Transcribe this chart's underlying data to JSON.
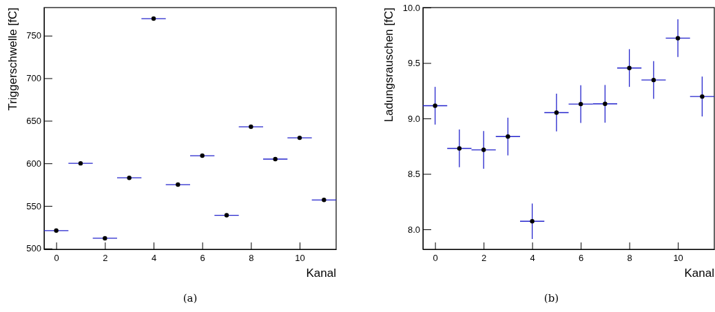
{
  "chart_data": [
    {
      "type": "scatter",
      "xlabel": "Kanal",
      "ylabel": "Triggerschwelle [fC]",
      "annotations": [
        "(a)"
      ],
      "x": [
        0,
        1,
        2,
        3,
        4,
        5,
        6,
        7,
        8,
        9,
        10,
        11
      ],
      "xlim": [
        -0.5,
        11.5
      ],
      "xticks": [
        0,
        2,
        4,
        6,
        8,
        10
      ],
      "ylim": [
        499,
        783
      ],
      "yticks": [
        500,
        550,
        600,
        650,
        700,
        750
      ],
      "marker": "circle",
      "series": [
        {
          "color": "#000000",
          "values": [
            521,
            600,
            512,
            583,
            770,
            575,
            609,
            539,
            643,
            605,
            630,
            557
          ],
          "xerrors": [
            0.5,
            0.5,
            0.5,
            0.5,
            0.5,
            0.5,
            0.5,
            0.5,
            0.5,
            0.5,
            0.5,
            0.5
          ]
        }
      ]
    },
    {
      "type": "scatter",
      "xlabel": "Kanal",
      "ylabel": "Ladungsrauschen [fC]",
      "annotations": [
        "(b)"
      ],
      "x": [
        0,
        1,
        2,
        3,
        4,
        5,
        6,
        7,
        8,
        9,
        10,
        11
      ],
      "xlim": [
        -0.5,
        11.5
      ],
      "xticks": [
        0,
        2,
        4,
        6,
        8,
        10
      ],
      "ylim": [
        7.82,
        10.0
      ],
      "yticks": [
        {
          "value": 8,
          "label": "8.0"
        },
        {
          "value": 8.5,
          "label": "8.5"
        },
        {
          "value": 9,
          "label": "9.0"
        },
        {
          "value": 9.5,
          "label": "9.5"
        },
        {
          "value": 10,
          "label": "10.0"
        }
      ],
      "marker": "circle",
      "series": [
        {
          "color": "#000000",
          "values": [
            9.115,
            8.73,
            8.717,
            8.837,
            8.073,
            9.053,
            9.13,
            9.132,
            9.455,
            9.347,
            9.724,
            9.198
          ],
          "errors": [
            0.17,
            0.17,
            0.17,
            0.17,
            0.16,
            0.17,
            0.17,
            0.17,
            0.17,
            0.17,
            0.17,
            0.18
          ],
          "xerrors": [
            0.5,
            0.5,
            0.5,
            0.5,
            0.5,
            0.5,
            0.5,
            0.5,
            0.5,
            0.5,
            0.5,
            0.5
          ]
        }
      ]
    }
  ]
}
